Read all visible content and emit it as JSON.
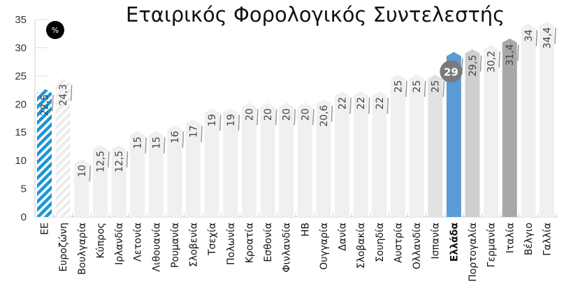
{
  "chart_data": {
    "type": "bar",
    "title": "Εταιρικός Φορολογικός Συντελεστής",
    "unit_badge": "%",
    "categories": [
      "ΕΕ",
      "Ευροζώνη",
      "Βουλγαρία",
      "Κύπρος",
      "Ιρλανδία",
      "Λετονία",
      "Λιθουανία",
      "Ρουμανία",
      "Σλοβενία",
      "Τσεχία",
      "Πολωνία",
      "Κροατία",
      "Εσθονία",
      "Φινλανδία",
      "ΗΒ",
      "Ουγγαρία",
      "Δανία",
      "Σλοβακία",
      "Σουηδία",
      "Αυστρία",
      "Ολλανδία",
      "Ισπανία",
      "Ελλάδα",
      "Πορτογαλία",
      "Γερμανία",
      "Ιταλία",
      "Βέλγιο",
      "Γαλλία"
    ],
    "values": [
      22.5,
      24.3,
      10,
      12.5,
      12.5,
      15,
      15,
      16,
      17,
      19,
      19,
      20,
      20,
      20,
      20,
      20.6,
      22,
      22,
      22,
      25,
      25,
      25,
      29,
      29.5,
      30.2,
      31.4,
      34,
      34.4
    ],
    "value_labels": [
      "22,5",
      "24,3",
      "10",
      "12,5",
      "12,5",
      "15",
      "15",
      "16",
      "17",
      "19",
      "19",
      "20",
      "20",
      "20",
      "20",
      "20,6",
      "22",
      "22",
      "22",
      "25",
      "25",
      "25",
      "29",
      "29,5",
      "30,2",
      "31,4",
      "34",
      "34,4"
    ],
    "highlighted": "Ελλάδα",
    "ylim": [
      0,
      35
    ],
    "yticks": [
      0,
      5,
      10,
      15,
      20,
      25,
      30,
      35
    ],
    "grid": false,
    "colors": {
      "default": "#f0f0f0",
      "ΕΕ": "#1a96d4",
      "Ευροζώνη": "#f0f0f0",
      "Ισπανία": "#e2e2e2",
      "Ελλάδα": "#5b9bd5",
      "Πορτογαλία": "#cfcfcf",
      "Ιταλία": "#a8a8a8",
      "value_badge": "#7a7a7a"
    },
    "patterns": {
      "ΕΕ": "hatched",
      "Ευροζώνη": "hatched"
    }
  }
}
